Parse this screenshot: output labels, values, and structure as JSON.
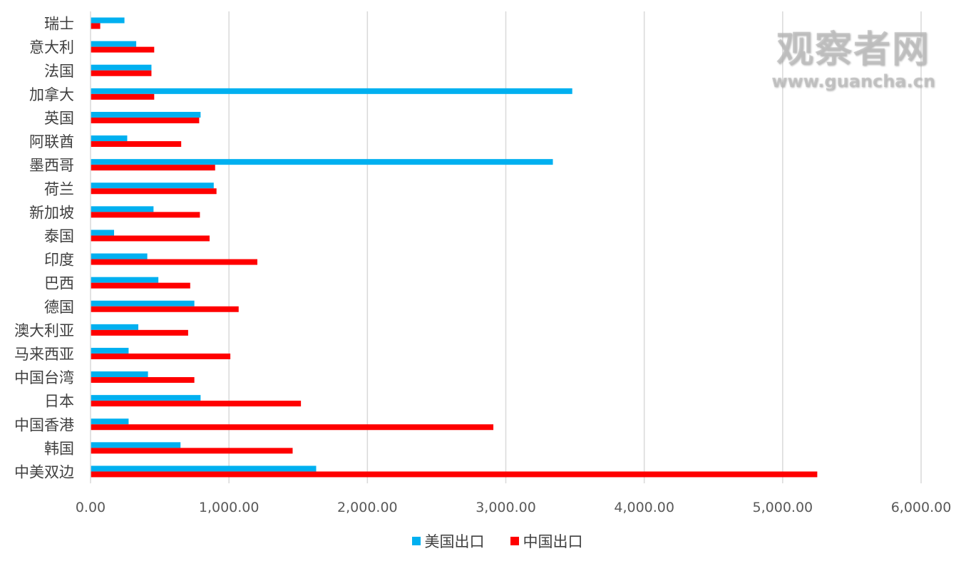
{
  "chart_data": {
    "type": "bar",
    "orientation": "horizontal",
    "categories": [
      "瑞士",
      "意大利",
      "法国",
      "加拿大",
      "英国",
      "阿联酋",
      "墨西哥",
      "荷兰",
      "新加坡",
      "泰国",
      "印度",
      "巴西",
      "德国",
      "澳大利亚",
      "马来西亚",
      "中国台湾",
      "日本",
      "中国香港",
      "韩国",
      "中美双边"
    ],
    "series": [
      {
        "name": "美国出口",
        "color": "#00b0f0",
        "values": [
          245,
          330,
          440,
          3480,
          795,
          265,
          3340,
          890,
          455,
          170,
          410,
          490,
          750,
          345,
          275,
          415,
          795,
          275,
          650,
          1630
        ]
      },
      {
        "name": "中国出口",
        "color": "#ff0000",
        "values": [
          70,
          460,
          440,
          460,
          785,
          655,
          900,
          910,
          790,
          860,
          1205,
          720,
          1070,
          705,
          1010,
          750,
          1520,
          2910,
          1460,
          5250
        ]
      }
    ],
    "xlim": [
      0,
      6000
    ],
    "xticks": [
      "0.00",
      "1,000.00",
      "2,000.00",
      "3,000.00",
      "4,000.00",
      "5,000.00",
      "6,000.00"
    ],
    "grid": true,
    "legend_position": "bottom"
  },
  "watermark": {
    "main": "观察者网",
    "sub": "www.guancha.cn"
  }
}
